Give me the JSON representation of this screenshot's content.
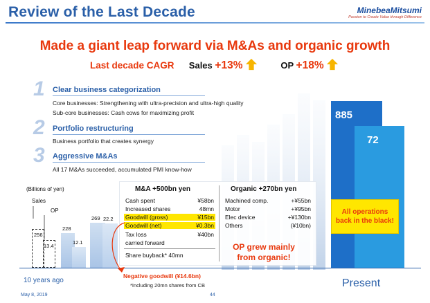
{
  "header": {
    "title": "Review of the Last Decade",
    "logo_text": "MinebeaMitsumi",
    "logo_tagline": "Passion to Create Value through Difference"
  },
  "headline": "Made a giant leap forward via M&As and organic growth",
  "cagr": {
    "label": "Last decade CAGR",
    "sales_label": "Sales",
    "sales_value": "+13%",
    "op_label": "OP",
    "op_value": "+18%"
  },
  "sections": [
    {
      "number": "1",
      "heading": "Clear business categorization",
      "lines": [
        "Core businesses: Strengthening with ultra-precision and ultra-high quality",
        "Sub-core businesses: Cash cows for maximizing profit"
      ]
    },
    {
      "number": "2",
      "heading": "Portfolio restructuring",
      "lines": [
        "Business portfolio that creates synergy"
      ]
    },
    {
      "number": "3",
      "heading": "Aggressive M&As",
      "lines": [
        "All 17 M&As succeeded, accumulated PMI know-how"
      ]
    }
  ],
  "chart": {
    "unit_label": "(Billions of yen)",
    "sales_label": "Sales",
    "op_label": "OP",
    "ten_years_ago": "10 years ago",
    "present": "Present",
    "sales_values": [
      "256",
      "228",
      "269",
      "885"
    ],
    "op_values": [
      "13.4",
      "12.1",
      "22.2",
      "72"
    ]
  },
  "chart_data": {
    "type": "bar",
    "categories": [
      "10 years ago",
      "",
      "",
      "Present"
    ],
    "series": [
      {
        "name": "Sales",
        "values": [
          256,
          228,
          269,
          885
        ]
      },
      {
        "name": "OP",
        "values": [
          13.4,
          12.1,
          22.2,
          72
        ]
      }
    ],
    "ylabel": "(Billions of yen)"
  },
  "table": {
    "ma_head": "M&A +500bn yen",
    "organic_head": "Organic  +270bn yen",
    "ma_rows": [
      {
        "label": "Cash spent",
        "value": "¥58bn"
      },
      {
        "label": "Increased shares",
        "value": "48mn"
      },
      {
        "label": "Goodwill (gross)",
        "value": "¥15bn"
      },
      {
        "label": "Goodwill (net)",
        "value": "¥0.3bn"
      },
      {
        "label": "Tax loss",
        "value": "¥40bn"
      },
      {
        "label": "carried forward",
        "value": ""
      }
    ],
    "organic_rows": [
      {
        "label": "Machined comp.",
        "value": "+¥55bn"
      },
      {
        "label": "Motor",
        "value": "+¥95bn"
      },
      {
        "label": "Elec device",
        "value": "+¥130bn"
      },
      {
        "label": "Others",
        "value": "(¥10bn)"
      }
    ],
    "buyback": "Share buyback*  40mn"
  },
  "notes": {
    "negative_goodwill": "Negative goodwill (¥14.6bn)",
    "cb_note": "*Including 20mn shares from CB",
    "op_grew_1": "OP grew mainly",
    "op_grew_2": "from organic!",
    "badge_1": "All operations",
    "badge_2": "back in the black!"
  },
  "footer": {
    "date": "May 8, 2019",
    "page": "44"
  },
  "colors": {
    "title_blue": "#2a5fa8",
    "accent_red": "#e8380d",
    "sales_bar": "#1e6fc8",
    "op_bar": "#2a9be0",
    "highlight_yellow": "#ffe600"
  }
}
